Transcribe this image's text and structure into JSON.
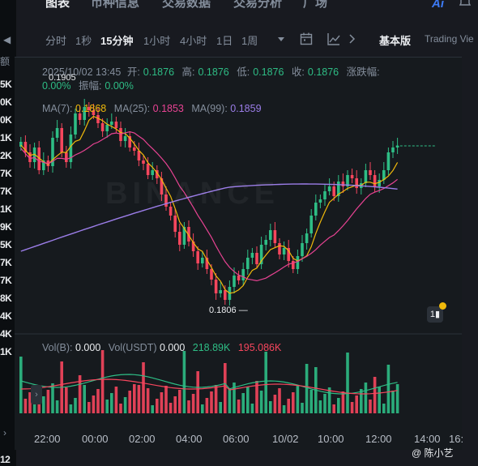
{
  "left_column": {
    "header": "额",
    "values": [
      "5K",
      "0K",
      "0K",
      "1K",
      "2K",
      "7K",
      "7K",
      "1K",
      "9K",
      "5K",
      "7K",
      "7K",
      "8K",
      "4K",
      "4K",
      "1K"
    ],
    "chevron_top": "◀",
    "chevron_bottom": "›",
    "footer": "12"
  },
  "top_tabs": [
    "图表",
    "币种信息",
    "交易数据",
    "交易分析",
    "广场"
  ],
  "ai_label": "Ai",
  "intervals": [
    "分时",
    "1秒",
    "15分钟",
    "1小时",
    "4小时",
    "1日",
    "1周"
  ],
  "active_interval": "15分钟",
  "toolbar": {
    "basic": "基本版",
    "tradingview": "Trading Vie"
  },
  "ohlc": {
    "date": "2025/10/02 13:45",
    "open_label": "开:",
    "open": "0.1876",
    "high_label": "高:",
    "high": "0.1876",
    "low_label": "低:",
    "low": "0.1876",
    "close_label": "收:",
    "close": "0.1876",
    "change_label": "涨跌幅:",
    "change": "0.00%",
    "amplitude_label": "振幅:",
    "amplitude": "0.00%"
  },
  "ma": {
    "ma7_label": "MA(7):",
    "ma7": "0.1868",
    "ma25_label": "MA(25):",
    "ma25": "0.1853",
    "ma99_label": "MA(99):",
    "ma99": "0.1859"
  },
  "volume": {
    "vol_b_label": "Vol(B):",
    "vol_b": "0.000",
    "vol_usdt_label": "Vol(USDT)",
    "vol_usdt": "0.000",
    "vol_ma1": "218.89K",
    "vol_ma2": "195.086K"
  },
  "high_marker": "0.1905",
  "low_marker": "0.1806",
  "watermark": "BINANCE",
  "time_labels": [
    "22:00",
    "00:00",
    "02:00",
    "04:00",
    "06:00",
    "10/02",
    "10:00",
    "12:00",
    "14:00",
    "16:"
  ],
  "author": "@ 陈小艺",
  "colors": {
    "up": "#2ebd85",
    "down": "#f6465d",
    "ma7": "#f0b90b",
    "ma25": "#e84393",
    "ma99": "#9b7de8",
    "vol_ma1": "#2ebd85",
    "vol_ma2": "#f6465d"
  }
}
